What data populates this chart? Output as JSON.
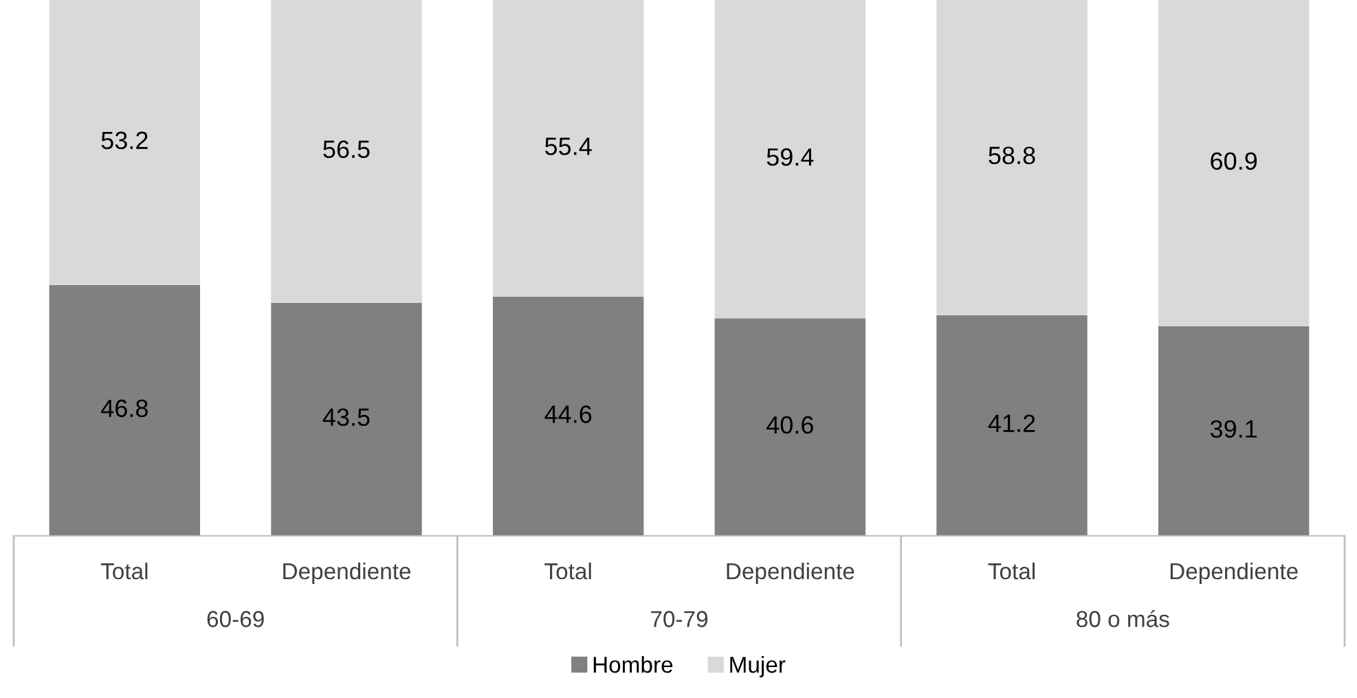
{
  "chart_data": {
    "type": "bar",
    "stacked": true,
    "data_labels": true,
    "legend": "bottom",
    "grid": false,
    "categories": [
      "Total",
      "Dependiente",
      "Total",
      "Dependiente",
      "Total",
      "Dependiente"
    ],
    "annotations": [
      "60-69",
      "70-79",
      "80 o más"
    ],
    "series": [
      {
        "name": "Hombre",
        "color": "#808080",
        "values": [
          46.8,
          43.5,
          44.6,
          40.6,
          41.2,
          39.1
        ]
      },
      {
        "name": "Mujer",
        "color": "#d9d9d9",
        "values": [
          53.2,
          56.5,
          55.4,
          59.4,
          58.8,
          60.9
        ]
      }
    ]
  }
}
